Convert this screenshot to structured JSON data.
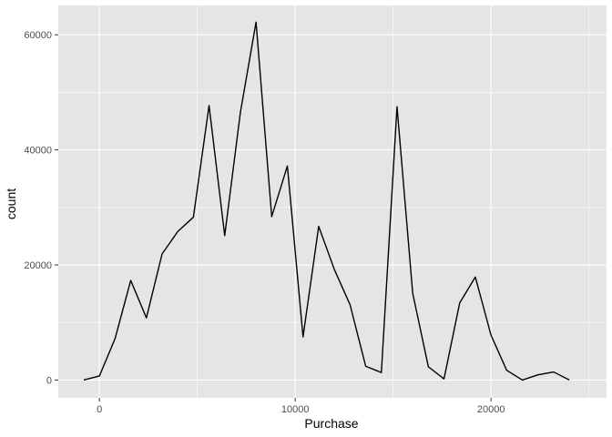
{
  "chart_data": {
    "type": "line",
    "title": "",
    "xlabel": "Purchase",
    "ylabel": "count",
    "xlim": [
      -2100,
      25900
    ],
    "ylim": [
      -3100,
      65100
    ],
    "x_ticks": [
      0,
      10000,
      20000
    ],
    "x_tick_labels": [
      "0",
      "10000",
      "20000"
    ],
    "x_minor_ticks": [
      5000,
      15000,
      25000
    ],
    "y_ticks": [
      0,
      20000,
      40000,
      60000
    ],
    "y_tick_labels": [
      "0",
      "20000",
      "40000",
      "60000"
    ],
    "y_minor_ticks": [
      10000,
      30000,
      50000
    ],
    "grid": true,
    "legend": "none",
    "colors": {
      "panel": "#e5e5e5",
      "grid": "#ffffff",
      "line": "#000000",
      "tick": "#333333"
    },
    "series": [
      {
        "x": [
          -800,
          0,
          800,
          1600,
          2400,
          3200,
          4000,
          4800,
          5600,
          6400,
          7200,
          8000,
          8800,
          9600,
          10400,
          11200,
          12000,
          12800,
          13600,
          14400,
          15200,
          16000,
          16800,
          17600,
          18400,
          19200,
          20000,
          20800,
          21600,
          22400,
          23200,
          24000
        ],
        "values": [
          0,
          700,
          7200,
          17300,
          10800,
          21900,
          25800,
          28300,
          47700,
          25100,
          46500,
          62200,
          28400,
          37200,
          7500,
          26700,
          19200,
          13100,
          2400,
          1300,
          47500,
          15100,
          2300,
          200,
          13400,
          17900,
          7800,
          1700,
          0,
          900,
          1400,
          0
        ]
      }
    ]
  }
}
